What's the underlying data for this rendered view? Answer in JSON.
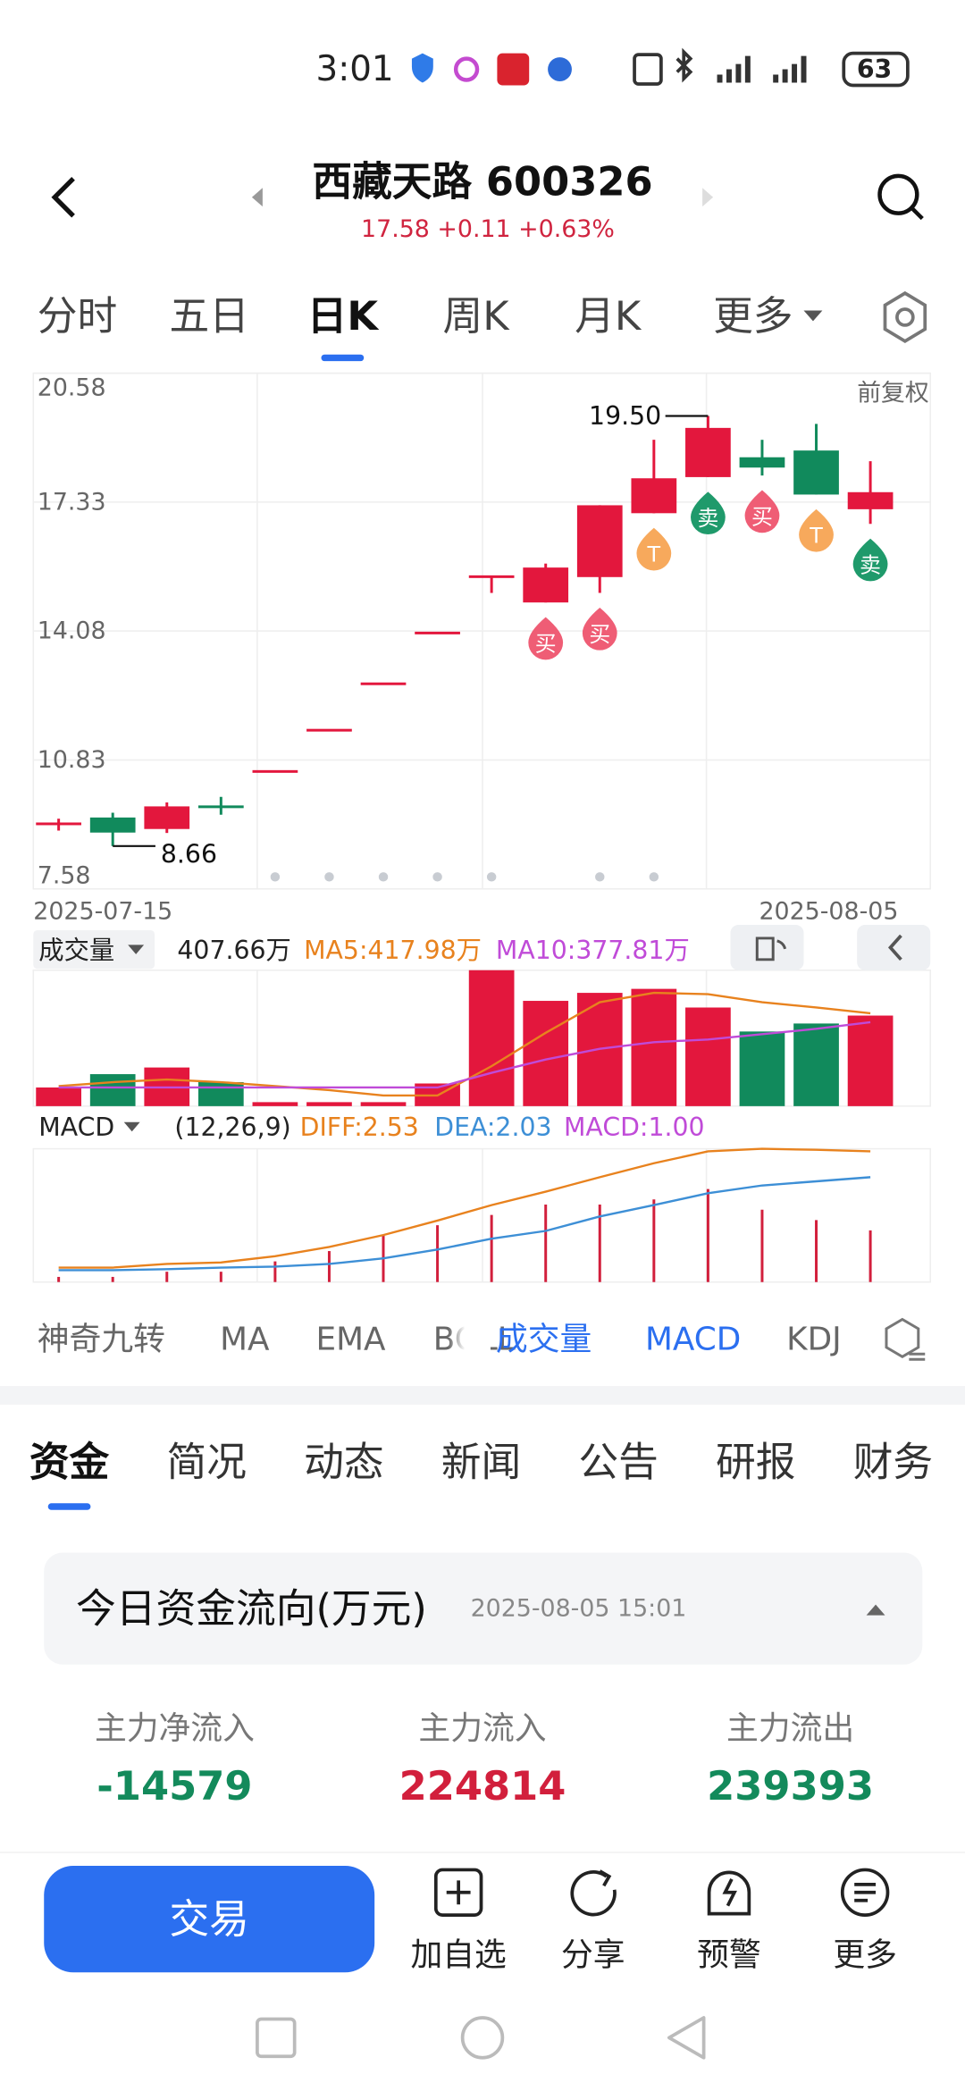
{
  "status_bar": {
    "time": "3:01",
    "battery": "63"
  },
  "header": {
    "title": "西藏天路 600326",
    "quote": "17.58 +0.11 +0.63%"
  },
  "period_tabs": {
    "items": [
      "分时",
      "五日",
      "日K",
      "周K",
      "月K",
      "更多"
    ],
    "selected": 2
  },
  "chart_data": [
    {
      "type": "candlestick",
      "adjust": "前复权",
      "categories": [
        "2025-07-15",
        null,
        null,
        null,
        null,
        null,
        null,
        null,
        null,
        null,
        null,
        null,
        null,
        null,
        null,
        "2025-08-05"
      ],
      "open": [
        9.18,
        9.38,
        9.09,
        9.65,
        10.54,
        11.58,
        12.75,
        14.03,
        15.42,
        14.8,
        15.44,
        17.05,
        17.96,
        18.46,
        18.63,
        17.15
      ],
      "high": [
        9.35,
        9.5,
        9.76,
        9.9,
        10.54,
        11.58,
        12.75,
        14.03,
        15.47,
        15.78,
        17.25,
        18.9,
        19.5,
        18.9,
        19.3,
        18.36
      ],
      "low": [
        9.05,
        8.66,
        8.99,
        9.45,
        10.54,
        11.58,
        12.75,
        14.03,
        15.04,
        14.8,
        15.04,
        17.05,
        17.96,
        18.0,
        17.52,
        16.78
      ],
      "close": [
        9.22,
        9.0,
        9.66,
        9.6,
        10.54,
        11.58,
        12.75,
        14.03,
        15.45,
        15.68,
        17.25,
        17.93,
        19.2,
        18.2,
        17.52,
        17.58
      ],
      "max_label": "19.50",
      "min_label": "8.66",
      "signals": [
        null,
        null,
        null,
        null,
        null,
        null,
        null,
        null,
        null,
        "买",
        "买",
        "T",
        "卖",
        "买",
        "T",
        "卖"
      ],
      "signal_colors": {
        "买": "#ef5d75",
        "卖": "#1f9a6b",
        "T": "#f7a95c"
      },
      "dots": [
        false,
        false,
        false,
        false,
        true,
        true,
        true,
        true,
        true,
        false,
        true,
        true,
        false,
        false,
        false,
        false
      ],
      "ylim": [
        7.58,
        20.58
      ],
      "yticks": [
        20.58,
        17.33,
        14.08,
        10.83,
        7.58
      ],
      "up_color": "#e3173d",
      "down_color": "#118a5c",
      "grid": true
    },
    {
      "type": "bar",
      "title": "成交量",
      "values": [
        84,
        144,
        174,
        108,
        18,
        18,
        18,
        102,
        612,
        474,
        510,
        528,
        444,
        336,
        372,
        407.66
      ],
      "value_labels": [
        null,
        null,
        null,
        null,
        null,
        null,
        null,
        null,
        null,
        null,
        null,
        null,
        null,
        null,
        null,
        "407.66万"
      ],
      "ylim": [
        0,
        612
      ],
      "lines": [
        {
          "name": "MA5:417.98万",
          "color": "#e8821e",
          "values": [
            90,
            108,
            120,
            108,
            90,
            72,
            48,
            48,
            180,
            330,
            468,
            510,
            504,
            468,
            444,
            417.98
          ]
        },
        {
          "name": "MA10:377.81万",
          "color": "#c04bd8",
          "values": [
            84,
            84,
            84,
            84,
            84,
            84,
            84,
            84,
            150,
            210,
            258,
            288,
            300,
            324,
            348,
            377.81
          ]
        }
      ]
    },
    {
      "type": "macd",
      "title": "MACD",
      "params": "(12,26,9)",
      "ylim": [
        0,
        2.58
      ],
      "series": [
        {
          "name": "DIFF:2.53",
          "color": "#e8821e",
          "values": [
            0.28,
            0.28,
            0.35,
            0.38,
            0.5,
            0.68,
            0.91,
            1.19,
            1.49,
            1.75,
            2.03,
            2.3,
            2.53,
            2.58,
            2.56,
            2.53
          ]
        },
        {
          "name": "DEA:2.03",
          "color": "#3d8fd6",
          "values": [
            0.23,
            0.23,
            0.25,
            0.28,
            0.3,
            0.35,
            0.46,
            0.63,
            0.84,
            0.99,
            1.27,
            1.49,
            1.72,
            1.87,
            1.95,
            2.03
          ]
        }
      ],
      "histogram": {
        "name": "MACD:1.00",
        "color": "#c04bd8",
        "bar_color": "#d21f3c",
        "values": [
          0.1,
          0.1,
          0.2,
          0.2,
          0.4,
          0.6,
          0.9,
          1.1,
          1.3,
          1.5,
          1.5,
          1.6,
          1.8,
          1.4,
          1.2,
          1.0
        ]
      }
    }
  ],
  "indicator_tabs": {
    "items": [
      "神奇九转",
      "MA",
      "EMA",
      "BOLL",
      "成交量",
      "MACD",
      "KDJ"
    ],
    "active": [
      false,
      false,
      false,
      false,
      true,
      true,
      false
    ]
  },
  "info_tabs": {
    "items": [
      "资金",
      "简况",
      "动态",
      "新闻",
      "公告",
      "研报",
      "财务"
    ],
    "selected": 0
  },
  "fund_flow": {
    "title": "今日资金流向(万元)",
    "time": "2025-08-05 15:01",
    "items": [
      {
        "label": "主力净流入",
        "value": -14579,
        "color": "#138a5b"
      },
      {
        "label": "主力流入",
        "value": 224814,
        "color": "#d21f3c"
      },
      {
        "label": "主力流出",
        "value": 239393,
        "color": "#138a5b"
      }
    ]
  },
  "bottom_bar": {
    "trade": "交易",
    "actions": [
      "加自选",
      "分享",
      "预警",
      "更多"
    ]
  }
}
